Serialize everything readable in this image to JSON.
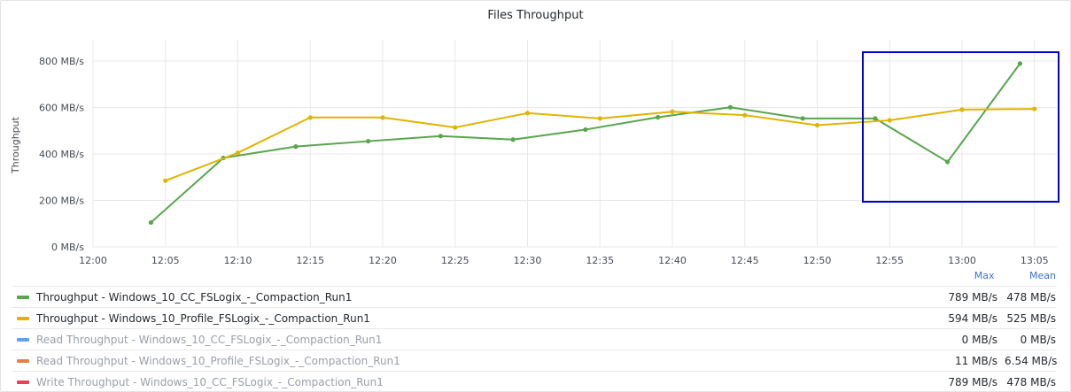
{
  "panel": {
    "title": "Files Throughput"
  },
  "legend": {
    "headers": {
      "max": "Max",
      "mean": "Mean"
    },
    "items": [
      {
        "name": "Throughput - Windows_10_CC_FSLogix_-_Compaction_Run1",
        "color": "#56a64b",
        "max": "789 MB/s",
        "mean": "478 MB/s",
        "hidden": false
      },
      {
        "name": "Throughput - Windows_10_Profile_FSLogix_-_Compaction_Run1",
        "color": "#e0b400",
        "max": "594 MB/s",
        "mean": "525 MB/s",
        "hidden": false
      },
      {
        "name": "Read Throughput - Windows_10_CC_FSLogix_-_Compaction_Run1",
        "color": "#5794f2",
        "max": "0 MB/s",
        "mean": "0 MB/s",
        "hidden": true
      },
      {
        "name": "Read Throughput - Windows_10_Profile_FSLogix_-_Compaction_Run1",
        "color": "#e0752d",
        "max": "11 MB/s",
        "mean": "6.54 MB/s",
        "hidden": true
      },
      {
        "name": "Write Throughput - Windows_10_CC_FSLogix_-_Compaction_Run1",
        "color": "#e02f44",
        "max": "789 MB/s",
        "mean": "478 MB/s",
        "hidden": true
      }
    ]
  },
  "chart_data": {
    "type": "line",
    "title": "Files Throughput",
    "xlabel": "",
    "ylabel": "Throughput",
    "x_ticks": [
      "12:00",
      "12:05",
      "12:10",
      "12:15",
      "12:20",
      "12:25",
      "12:30",
      "12:35",
      "12:40",
      "12:45",
      "12:50",
      "12:55",
      "13:00",
      "13:05"
    ],
    "y_ticks": [
      "0 MB/s",
      "200 MB/s",
      "400 MB/s",
      "600 MB/s",
      "800 MB/s"
    ],
    "xlim_minutes_after_12_00": [
      0,
      67
    ],
    "ylim": [
      0,
      860
    ],
    "grid": true,
    "legend_position": "bottom",
    "series": [
      {
        "name": "Throughput - Windows_10_CC_FSLogix_-_Compaction_Run1",
        "color": "#56a64b",
        "x": [
          "12:04",
          "12:09",
          "12:14",
          "12:19",
          "12:24",
          "12:29",
          "12:34",
          "12:39",
          "12:44",
          "12:49",
          "12:54",
          "12:59",
          "13:04"
        ],
        "values": [
          105,
          383,
          432,
          455,
          477,
          462,
          505,
          558,
          601,
          553,
          553,
          366,
          789
        ]
      },
      {
        "name": "Throughput - Windows_10_Profile_FSLogix_-_Compaction_Run1",
        "color": "#e0b400",
        "x": [
          "12:05",
          "12:10",
          "12:15",
          "12:20",
          "12:25",
          "12:30",
          "12:35",
          "12:40",
          "12:45",
          "12:50",
          "12:55",
          "13:00",
          "13:05"
        ],
        "values": [
          285,
          405,
          557,
          557,
          514,
          576,
          553,
          582,
          567,
          524,
          545,
          591,
          594
        ]
      }
    ],
    "annotation": {
      "type": "highlight-box",
      "color": "#0000cc"
    }
  }
}
